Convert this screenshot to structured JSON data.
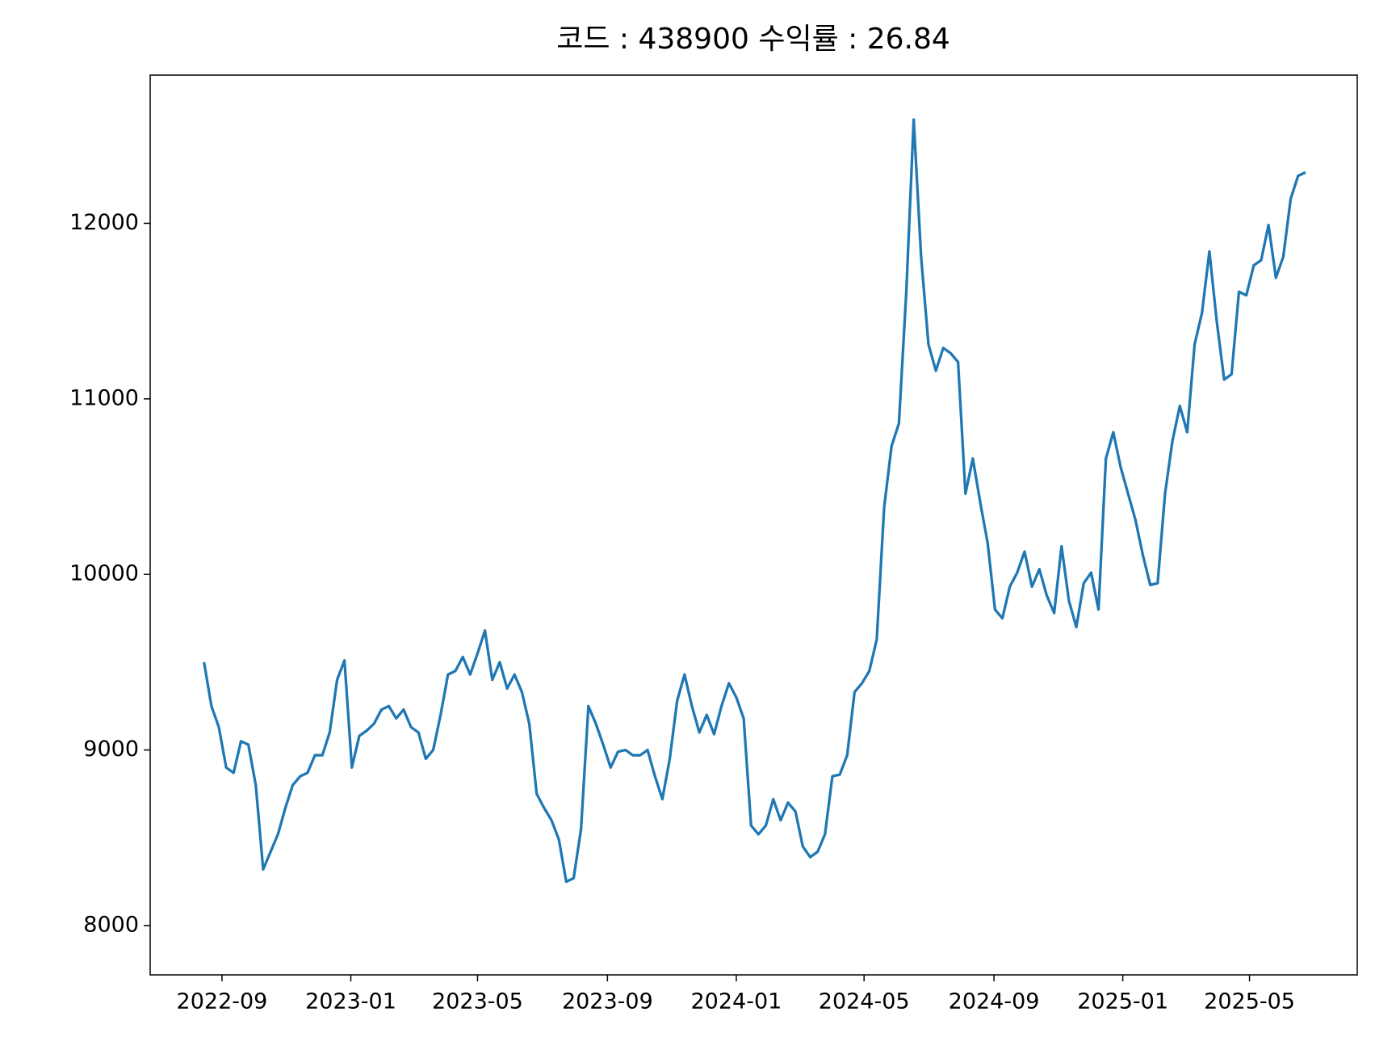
{
  "chart_data": {
    "type": "line",
    "title": "코드 : 438900 수익률 : 26.84",
    "x": [
      "2022-08-15",
      "2022-08-22",
      "2022-08-29",
      "2022-09-05",
      "2022-09-12",
      "2022-09-19",
      "2022-09-26",
      "2022-10-03",
      "2022-10-10",
      "2022-10-17",
      "2022-10-24",
      "2022-10-31",
      "2022-11-07",
      "2022-11-14",
      "2022-11-21",
      "2022-11-28",
      "2022-12-05",
      "2022-12-12",
      "2022-12-19",
      "2022-12-26",
      "2023-01-02",
      "2023-01-09",
      "2023-01-16",
      "2023-01-23",
      "2023-01-30",
      "2023-02-06",
      "2023-02-13",
      "2023-02-20",
      "2023-02-27",
      "2023-03-06",
      "2023-03-13",
      "2023-03-20",
      "2023-03-27",
      "2023-04-03",
      "2023-04-10",
      "2023-04-17",
      "2023-04-24",
      "2023-05-01",
      "2023-05-08",
      "2023-05-15",
      "2023-05-22",
      "2023-05-29",
      "2023-06-05",
      "2023-06-12",
      "2023-06-19",
      "2023-06-26",
      "2023-07-03",
      "2023-07-10",
      "2023-07-17",
      "2023-07-24",
      "2023-07-31",
      "2023-08-07",
      "2023-08-14",
      "2023-08-21",
      "2023-08-28",
      "2023-09-04",
      "2023-09-11",
      "2023-09-18",
      "2023-09-25",
      "2023-10-02",
      "2023-10-09",
      "2023-10-16",
      "2023-10-23",
      "2023-10-30",
      "2023-11-06",
      "2023-11-13",
      "2023-11-20",
      "2023-11-27",
      "2023-12-04",
      "2023-12-11",
      "2023-12-18",
      "2023-12-25",
      "2024-01-01",
      "2024-01-08",
      "2024-01-15",
      "2024-01-22",
      "2024-01-29",
      "2024-02-05",
      "2024-02-12",
      "2024-02-19",
      "2024-02-26",
      "2024-03-04",
      "2024-03-11",
      "2024-03-18",
      "2024-03-25",
      "2024-04-01",
      "2024-04-08",
      "2024-04-15",
      "2024-04-22",
      "2024-04-29",
      "2024-05-06",
      "2024-05-13",
      "2024-05-20",
      "2024-05-27",
      "2024-06-03",
      "2024-06-10",
      "2024-06-17",
      "2024-06-24",
      "2024-07-01",
      "2024-07-08",
      "2024-07-15",
      "2024-07-22",
      "2024-07-29",
      "2024-08-05",
      "2024-08-12",
      "2024-08-19",
      "2024-08-26",
      "2024-09-02",
      "2024-09-09",
      "2024-09-16",
      "2024-09-23",
      "2024-09-30",
      "2024-10-07",
      "2024-10-14",
      "2024-10-21",
      "2024-10-28",
      "2024-11-04",
      "2024-11-11",
      "2024-11-18",
      "2024-11-25",
      "2024-12-02",
      "2024-12-09",
      "2024-12-16",
      "2024-12-23",
      "2024-12-30",
      "2025-01-06",
      "2025-01-13",
      "2025-01-20",
      "2025-01-27",
      "2025-02-03",
      "2025-02-10",
      "2025-02-17",
      "2025-02-24",
      "2025-03-03",
      "2025-03-10",
      "2025-03-17",
      "2025-03-24",
      "2025-03-31",
      "2025-04-07",
      "2025-04-14",
      "2025-04-21",
      "2025-04-28",
      "2025-05-05",
      "2025-05-12",
      "2025-05-19",
      "2025-05-26",
      "2025-06-02",
      "2025-06-09",
      "2025-06-16",
      "2025-06-23"
    ],
    "series": [
      {
        "color": "#1f77b4",
        "values": [
          9500,
          9250,
          9130,
          8900,
          8870,
          9050,
          9030,
          8800,
          8320,
          8420,
          8520,
          8670,
          8800,
          8850,
          8870,
          8970,
          8970,
          9100,
          9400,
          9510,
          8900,
          9080,
          9110,
          9150,
          9230,
          9250,
          9180,
          9230,
          9130,
          9100,
          8950,
          9000,
          9200,
          9430,
          9450,
          9530,
          9430,
          9550,
          9680,
          9400,
          9500,
          9350,
          9430,
          9330,
          9150,
          8750,
          8670,
          8600,
          8490,
          8250,
          8270,
          8550,
          9250,
          9150,
          9030,
          8900,
          8990,
          9000,
          8970,
          8970,
          9000,
          8850,
          8720,
          8950,
          9280,
          9430,
          9250,
          9100,
          9200,
          9090,
          9250,
          9380,
          9300,
          9180,
          8570,
          8520,
          8570,
          8720,
          8600,
          8700,
          8650,
          8450,
          8390,
          8420,
          8520,
          8850,
          8860,
          8970,
          9330,
          9380,
          9450,
          9630,
          10380,
          10730,
          10860,
          11610,
          12590,
          11810,
          11310,
          11160,
          11290,
          11260,
          11210,
          10460,
          10660,
          10410,
          10180,
          9800,
          9750,
          9930,
          10010,
          10130,
          9930,
          10030,
          9880,
          9780,
          10160,
          9850,
          9700,
          9950,
          10010,
          9800,
          10660,
          10810,
          10610,
          10460,
          10310,
          10110,
          9940,
          9950,
          10460,
          10760,
          10960,
          10810,
          11310,
          11490,
          11840,
          11440,
          11110,
          11140,
          11610,
          11590,
          11760,
          11790,
          11990,
          11690,
          11810,
          12140,
          12270,
          12290
        ]
      }
    ],
    "xlim": [
      "2022-06-25",
      "2025-08-11"
    ],
    "xticks": [
      {
        "value": "2022-09-01",
        "label": "2022-09"
      },
      {
        "value": "2023-01-01",
        "label": "2023-01"
      },
      {
        "value": "2023-05-01",
        "label": "2023-05"
      },
      {
        "value": "2023-09-01",
        "label": "2023-09"
      },
      {
        "value": "2024-01-01",
        "label": "2024-01"
      },
      {
        "value": "2024-05-01",
        "label": "2024-05"
      },
      {
        "value": "2024-09-01",
        "label": "2024-09"
      },
      {
        "value": "2025-01-01",
        "label": "2025-01"
      },
      {
        "value": "2025-05-01",
        "label": "2025-05"
      }
    ],
    "ylim": [
      7719,
      12844
    ],
    "yticks": [
      8000,
      9000,
      10000,
      11000,
      12000
    ],
    "grid": false
  }
}
